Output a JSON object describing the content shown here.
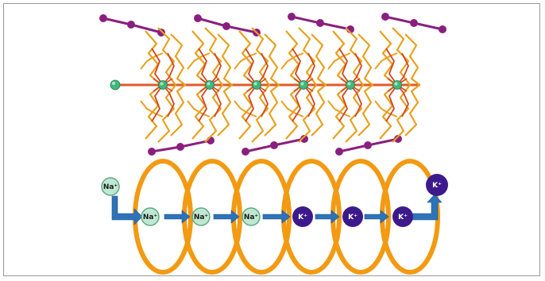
{
  "figure": {
    "colors": {
      "framework_orange": "#E8A01E",
      "framework_red": "#D2451E",
      "channel_axis": "#E05A28",
      "metal_green": "#3FB87A",
      "metal_green_light": "#A9E2C0",
      "counter_anion_purple": "#8A1F7F",
      "ring_orange": "#F29A12",
      "arrow_blue": "#2E72B8",
      "potassium_purple": "#3D1A8C",
      "sodium_fill": "#BFE8D2",
      "sodium_stroke": "#5FA884"
    },
    "bottom_panel": {
      "ions": [
        {
          "id": "na-in",
          "label": "Na⁺",
          "kind": "sodium"
        },
        {
          "id": "na-1",
          "label": "Na⁺",
          "kind": "sodium"
        },
        {
          "id": "na-2",
          "label": "Na⁺",
          "kind": "sodium"
        },
        {
          "id": "na-3",
          "label": "Na⁺",
          "kind": "sodium"
        },
        {
          "id": "k-1",
          "label": "K⁺",
          "kind": "potassium"
        },
        {
          "id": "k-2",
          "label": "K⁺",
          "kind": "potassium"
        },
        {
          "id": "k-3",
          "label": "K⁺",
          "kind": "potassium"
        },
        {
          "id": "k-out",
          "label": "K⁺",
          "kind": "potassium"
        }
      ],
      "ring_count": 6
    },
    "top_panel": {
      "cage_count": 6,
      "anion_count": 6
    }
  }
}
